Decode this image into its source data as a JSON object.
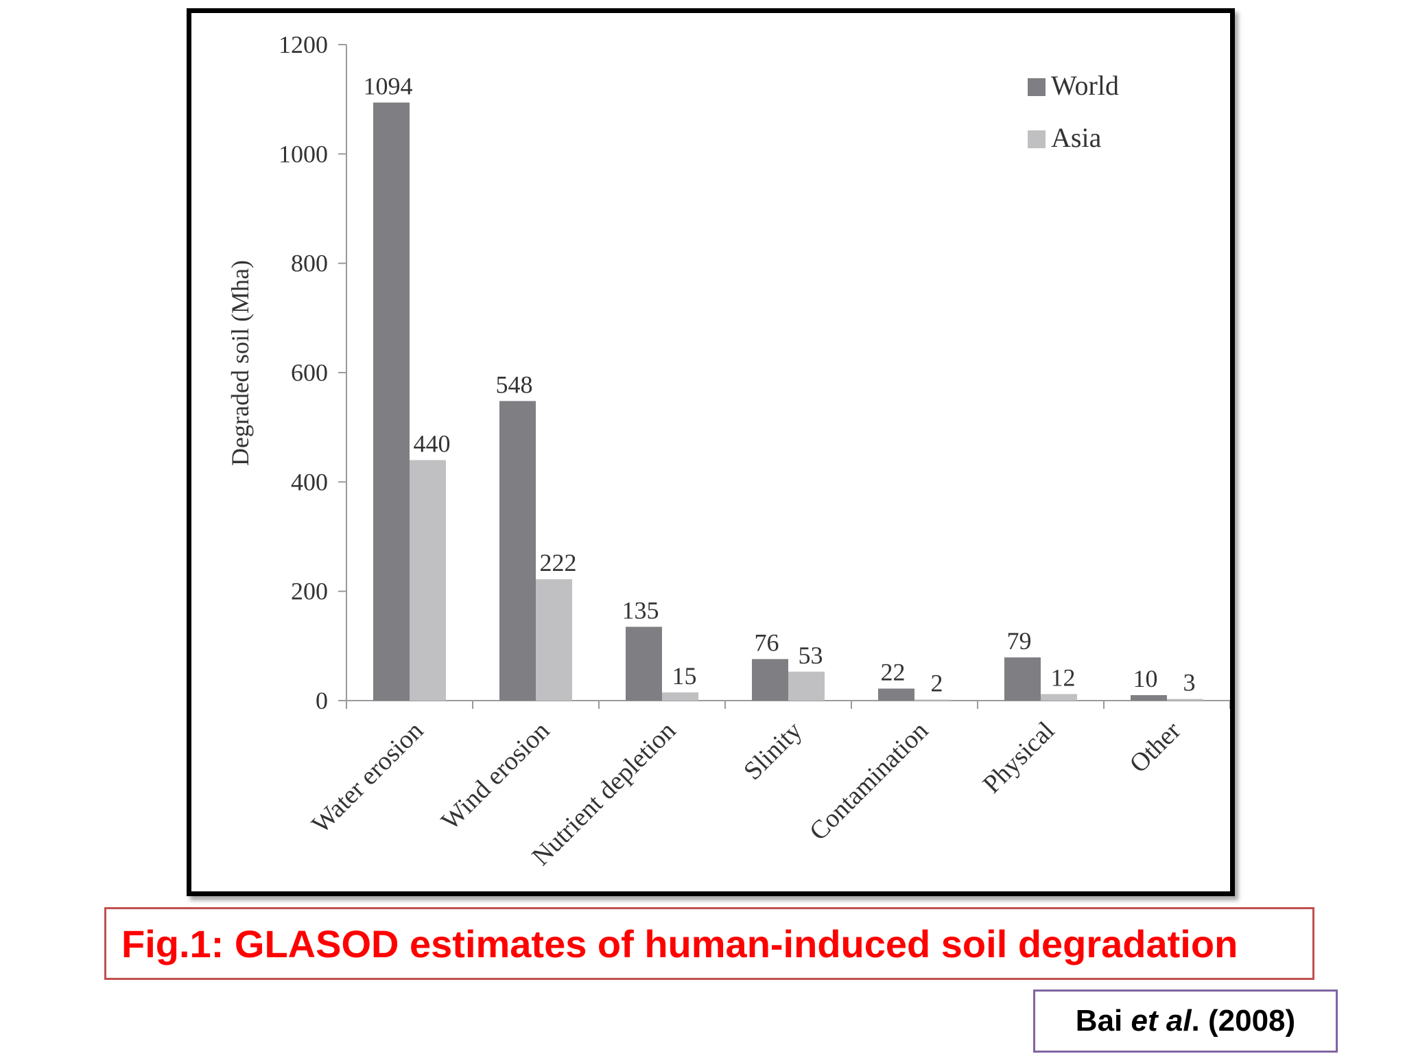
{
  "chart_data": {
    "type": "bar",
    "ylabel": "Degraded soil (Mha)",
    "ylim": [
      0,
      1200
    ],
    "yticks": [
      "0",
      "200",
      "400",
      "600",
      "800",
      "1000",
      "1200"
    ],
    "categories": [
      "Water erosion",
      "Wind erosion",
      "Nutrient depletion",
      "Slinity",
      "Contamination",
      "Physical",
      "Other"
    ],
    "series": [
      {
        "name": "World",
        "color": "#7f7f83",
        "values": [
          1094,
          548,
          135,
          76,
          22,
          79,
          10
        ]
      },
      {
        "name": "Asia",
        "color": "#c0c0c3",
        "values": [
          440,
          222,
          15,
          53,
          2,
          12,
          3
        ]
      }
    ],
    "legend_position": "top-right",
    "grid": false
  },
  "caption": "Fig.1: GLASOD estimates of human-induced soil degradation",
  "citation": {
    "author": "Bai ",
    "etal": "et al",
    "rest": ". (2008)"
  },
  "colors": {
    "caption_text": "#ff0000",
    "caption_border": "#c0504d",
    "citation_border": "#8064a2"
  }
}
